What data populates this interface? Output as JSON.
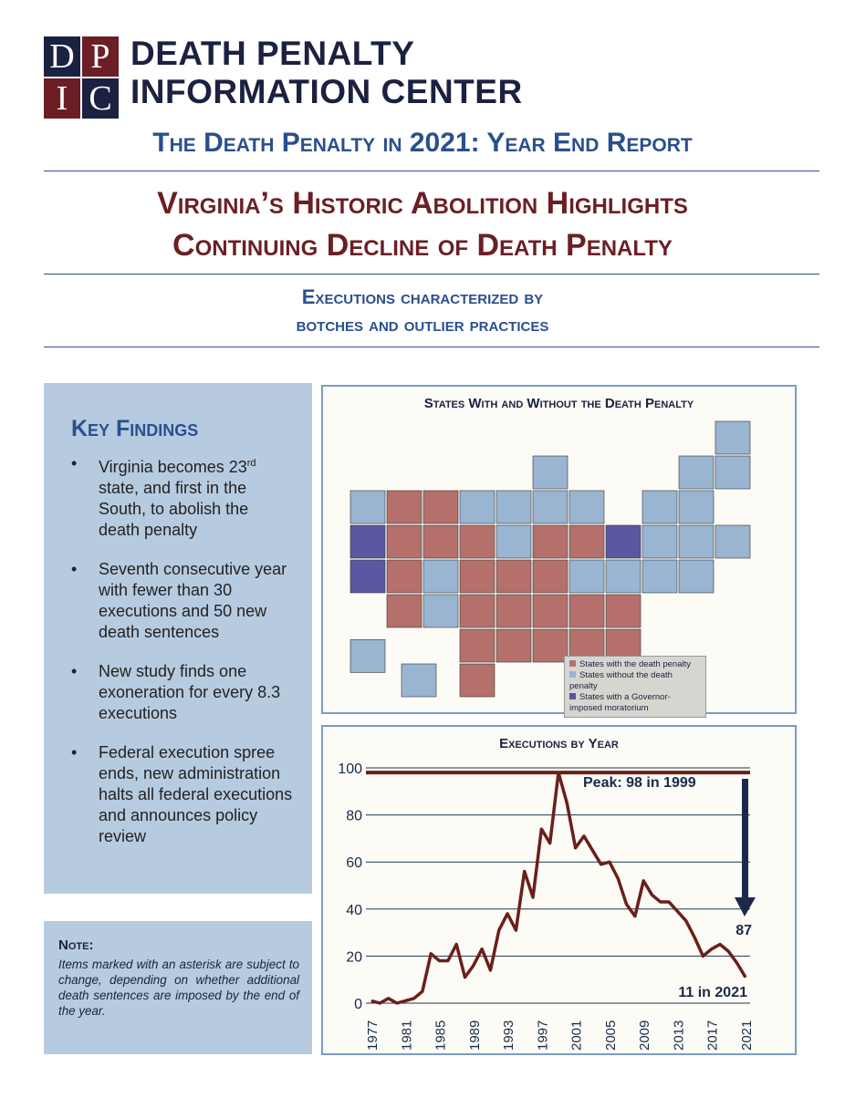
{
  "header": {
    "logo_letters": [
      "D",
      "P",
      "I",
      "C"
    ],
    "org_line1": "DEATH PENALTY",
    "org_line2": "INFORMATION CENTER"
  },
  "report_title": "The Death Penalty in 2021: Year End Report",
  "headline": {
    "line1": "Virginia’s Historic Abolition Highlights",
    "line2": "Continuing Decline of Death Penalty"
  },
  "subhead": {
    "line1": "Executions characterized by",
    "line2": "botches and outlier practices"
  },
  "key_findings": {
    "title": "Key Findings",
    "items": [
      {
        "pre": "Virginia becomes 23",
        "sup": "rd",
        "post": " state, and first in the South, to abolish the death penalty"
      },
      {
        "pre": "Seventh consecutive year with fewer than 30 executions and 50 new death sentences"
      },
      {
        "pre": "New study finds one exoneration for every 8.3 executions"
      },
      {
        "pre": "Federal execution spree ends, new administration halts all federal executions and announces policy review"
      }
    ]
  },
  "note": {
    "label": "Note:",
    "text": "Items marked with an asterisk are subject to change, depending on whether additional death sentences are imposed by the end of the year."
  },
  "map": {
    "title": "States With and Without the Death Penalty",
    "legend": [
      {
        "label": "States with the death penalty",
        "color": "#b5706b"
      },
      {
        "label": "States without the death penalty",
        "color": "#9ab5d2"
      },
      {
        "label": "States with a Governor-imposed moratorium",
        "color": "#5a58a0"
      }
    ]
  },
  "chart_data": {
    "type": "line",
    "title": "Executions by Year",
    "xlabel": "",
    "ylabel": "",
    "ylim": [
      0,
      100
    ],
    "yticks": [
      "0",
      "20",
      "40",
      "60",
      "80",
      "100"
    ],
    "xticks": [
      "1977",
      "1981",
      "1985",
      "1989",
      "1993",
      "1997",
      "2001",
      "2005",
      "2009",
      "2013",
      "2017",
      "2021"
    ],
    "x": [
      1977,
      1978,
      1979,
      1980,
      1981,
      1982,
      1983,
      1984,
      1985,
      1986,
      1987,
      1988,
      1989,
      1990,
      1991,
      1992,
      1993,
      1994,
      1995,
      1996,
      1997,
      1998,
      1999,
      2000,
      2001,
      2002,
      2003,
      2004,
      2005,
      2006,
      2007,
      2008,
      2009,
      2010,
      2011,
      2012,
      2013,
      2014,
      2015,
      2016,
      2017,
      2018,
      2019,
      2020,
      2021
    ],
    "values": [
      1,
      0,
      2,
      0,
      1,
      2,
      5,
      21,
      18,
      18,
      25,
      11,
      16,
      23,
      14,
      31,
      38,
      31,
      56,
      45,
      74,
      68,
      98,
      85,
      66,
      71,
      65,
      59,
      60,
      53,
      42,
      37,
      52,
      46,
      43,
      43,
      39,
      35,
      28,
      20,
      23,
      25,
      22,
      17,
      11
    ],
    "annotations": {
      "peak": "Peak: 98 in 1999",
      "drop": "87",
      "latest": "11 in 2021"
    },
    "colors": {
      "line": "#6b1f1a",
      "grid": "#1b3a4a",
      "arrow": "#1b2a4a"
    }
  }
}
